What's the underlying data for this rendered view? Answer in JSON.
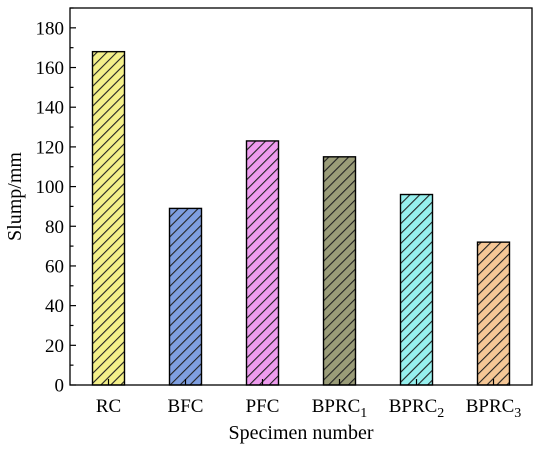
{
  "chart_data": {
    "type": "bar",
    "xlabel": "Specimen number",
    "ylabel": "Slump/mm",
    "ylim": [
      0,
      190
    ],
    "yticks": [
      0,
      20,
      40,
      60,
      80,
      100,
      120,
      140,
      160,
      180
    ],
    "grid": false,
    "categories": [
      {
        "label": "RC",
        "sub": ""
      },
      {
        "label": "BFC",
        "sub": ""
      },
      {
        "label": "PFC",
        "sub": ""
      },
      {
        "label": "BPRC",
        "sub": "1"
      },
      {
        "label": "BPRC",
        "sub": "2"
      },
      {
        "label": "BPRC",
        "sub": "3"
      }
    ],
    "values": [
      168,
      89,
      123,
      115,
      96,
      72
    ],
    "colors": [
      "#f4f08a",
      "#7f9fe0",
      "#ee9cee",
      "#9a9c78",
      "#96f0ee",
      "#f5c796"
    ],
    "pattern": "diagonal-hatch"
  }
}
